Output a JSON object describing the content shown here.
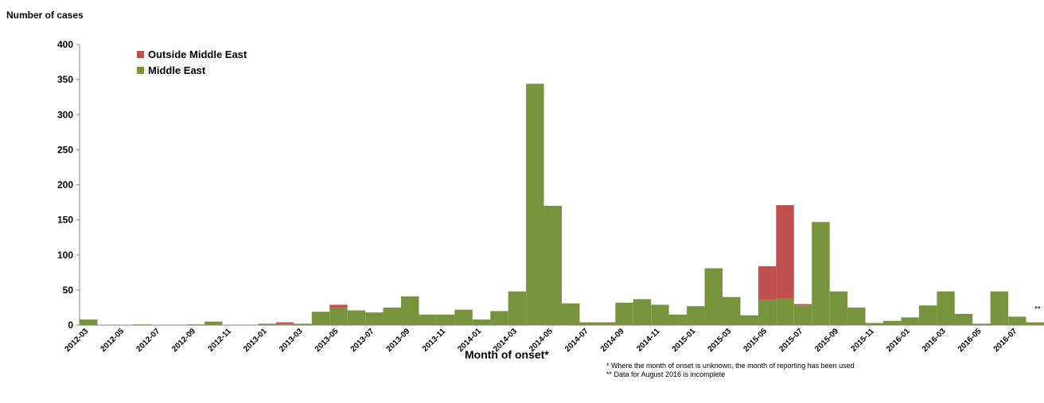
{
  "chart_data": {
    "type": "bar",
    "stacked": true,
    "ylabel": "Number of cases",
    "xlabel": "Month of onset*",
    "ylim": [
      0,
      400
    ],
    "yticks": [
      0,
      50,
      100,
      150,
      200,
      250,
      300,
      350,
      400
    ],
    "legend_position": "top-left",
    "categories": [
      "2012-03",
      "2012-04",
      "2012-05",
      "2012-06",
      "2012-07",
      "2012-08",
      "2012-09",
      "2012-10",
      "2012-11",
      "2012-12",
      "2013-01",
      "2013-02",
      "2013-03",
      "2013-04",
      "2013-05",
      "2013-06",
      "2013-07",
      "2013-08",
      "2013-09",
      "2013-10",
      "2013-11",
      "2013-12",
      "2014-01",
      "2014-02",
      "2014-03",
      "2014-04",
      "2014-05",
      "2014-06",
      "2014-07",
      "2014-08",
      "2014-09",
      "2014-10",
      "2014-11",
      "2014-12",
      "2015-01",
      "2015-02",
      "2015-03",
      "2015-04",
      "2015-05",
      "2015-06",
      "2015-07",
      "2015-08",
      "2015-09",
      "2015-10",
      "2015-11",
      "2015-12",
      "2016-01",
      "2016-02",
      "2016-03",
      "2016-04",
      "2016-05",
      "2016-06",
      "2016-07",
      "2016-08"
    ],
    "tick_labels": [
      "2012-03",
      "2012-05",
      "2012-07",
      "2012-09",
      "2012-11",
      "2013-01",
      "2013-03",
      "2013-05",
      "2013-07",
      "2013-09",
      "2013-11",
      "2014-01",
      "2014-03",
      "2014-05",
      "2014-07",
      "2014-09",
      "2014-11",
      "2015-01",
      "2015-03",
      "2015-05",
      "2015-07",
      "2015-09",
      "2015-11",
      "2016-01",
      "2016-03",
      "2016-05",
      "2016-07"
    ],
    "series": [
      {
        "name": "Middle East",
        "color": "#77933c",
        "values": [
          8,
          0,
          0,
          1,
          0,
          0,
          1,
          5,
          0,
          0,
          2,
          2,
          2,
          19,
          25,
          21,
          18,
          25,
          41,
          15,
          15,
          22,
          8,
          20,
          48,
          344,
          170,
          31,
          4,
          4,
          32,
          37,
          29,
          15,
          27,
          81,
          40,
          14,
          36,
          38,
          28,
          147,
          48,
          25,
          3,
          6,
          11,
          28,
          48,
          16,
          2,
          48,
          12,
          4
        ]
      },
      {
        "name": "Outside Middle East",
        "color": "#c0504d",
        "values": [
          0,
          0,
          0,
          0,
          0,
          0,
          0,
          0,
          0,
          0,
          0,
          2,
          0,
          0,
          4,
          0,
          0,
          0,
          0,
          0,
          0,
          0,
          0,
          0,
          0,
          0,
          0,
          0,
          0,
          0,
          0,
          0,
          0,
          0,
          0,
          0,
          0,
          0,
          48,
          133,
          2,
          0,
          0,
          0,
          0,
          0,
          0,
          0,
          0,
          0,
          0,
          0,
          0,
          0
        ]
      }
    ],
    "legend_order": [
      "Outside Middle East",
      "Middle East"
    ],
    "annotations": {
      "incomplete_marker": "**",
      "footnote1": "* Where the month of onset is unknown, the month of reporting has been used",
      "footnote2": "** Data for August 2016 is incomplete"
    }
  }
}
